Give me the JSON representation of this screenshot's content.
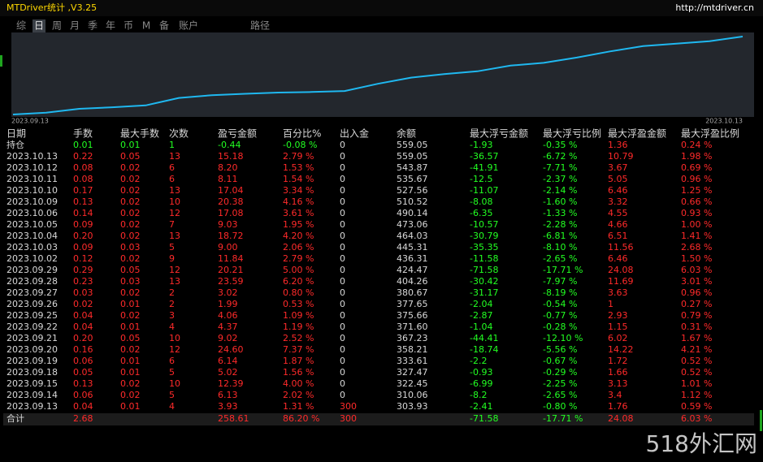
{
  "header": {
    "title": "MTDriver统计 ,V3.25",
    "url": "http://mtdriver.cn"
  },
  "tabs": [
    "综",
    "日",
    "周",
    "月",
    "季",
    "年",
    "币",
    "M",
    "备",
    "账户",
    "路径"
  ],
  "selected_tab": 1,
  "chart": {
    "start_label": "2023.09.13",
    "end_label": "2023.10.13"
  },
  "table": {
    "columns": [
      "日期",
      "手数",
      "最大手数",
      "次数",
      "盈亏金额",
      "百分比%",
      "出入金",
      "余额",
      "最大浮亏金额",
      "最大浮亏比例",
      "最大浮盈金额",
      "最大浮盈比例"
    ],
    "rows": [
      [
        "持仓",
        "0.01",
        "0.01",
        "1",
        "-0.44",
        "-0.08 %",
        "0",
        "559.05",
        "-1.93",
        "-0.35 %",
        "1.36",
        "0.24 %"
      ],
      [
        "2023.10.13",
        "0.22",
        "0.05",
        "13",
        "15.18",
        "2.79 %",
        "0",
        "559.05",
        "-36.57",
        "-6.72 %",
        "10.79",
        "1.98 %"
      ],
      [
        "2023.10.12",
        "0.08",
        "0.02",
        "6",
        "8.20",
        "1.53 %",
        "0",
        "543.87",
        "-41.91",
        "-7.71 %",
        "3.67",
        "0.69 %"
      ],
      [
        "2023.10.11",
        "0.08",
        "0.02",
        "6",
        "8.11",
        "1.54 %",
        "0",
        "535.67",
        "-12.5",
        "-2.37 %",
        "5.05",
        "0.96 %"
      ],
      [
        "2023.10.10",
        "0.17",
        "0.02",
        "13",
        "17.04",
        "3.34 %",
        "0",
        "527.56",
        "-11.07",
        "-2.14 %",
        "6.46",
        "1.25 %"
      ],
      [
        "2023.10.09",
        "0.13",
        "0.02",
        "10",
        "20.38",
        "4.16 %",
        "0",
        "510.52",
        "-8.08",
        "-1.60 %",
        "3.32",
        "0.66 %"
      ],
      [
        "2023.10.06",
        "0.14",
        "0.02",
        "12",
        "17.08",
        "3.61 %",
        "0",
        "490.14",
        "-6.35",
        "-1.33 %",
        "4.55",
        "0.93 %"
      ],
      [
        "2023.10.05",
        "0.09",
        "0.02",
        "7",
        "9.03",
        "1.95 %",
        "0",
        "473.06",
        "-10.57",
        "-2.28 %",
        "4.66",
        "1.00 %"
      ],
      [
        "2023.10.04",
        "0.20",
        "0.02",
        "13",
        "18.72",
        "4.20 %",
        "0",
        "464.03",
        "-30.79",
        "-6.81 %",
        "6.51",
        "1.41 %"
      ],
      [
        "2023.10.03",
        "0.09",
        "0.03",
        "5",
        "9.00",
        "2.06 %",
        "0",
        "445.31",
        "-35.35",
        "-8.10 %",
        "11.56",
        "2.68 %"
      ],
      [
        "2023.10.02",
        "0.12",
        "0.02",
        "9",
        "11.84",
        "2.79 %",
        "0",
        "436.31",
        "-11.58",
        "-2.65 %",
        "6.46",
        "1.50 %"
      ],
      [
        "2023.09.29",
        "0.29",
        "0.05",
        "12",
        "20.21",
        "5.00 %",
        "0",
        "424.47",
        "-71.58",
        "-17.71 %",
        "24.08",
        "6.03 %"
      ],
      [
        "2023.09.28",
        "0.23",
        "0.03",
        "13",
        "23.59",
        "6.20 %",
        "0",
        "404.26",
        "-30.42",
        "-7.97 %",
        "11.69",
        "3.01 %"
      ],
      [
        "2023.09.27",
        "0.03",
        "0.02",
        "2",
        "3.02",
        "0.80 %",
        "0",
        "380.67",
        "-31.17",
        "-8.19 %",
        "3.63",
        "0.96 %"
      ],
      [
        "2023.09.26",
        "0.02",
        "0.01",
        "2",
        "1.99",
        "0.53 %",
        "0",
        "377.65",
        "-2.04",
        "-0.54 %",
        "1",
        "0.27 %"
      ],
      [
        "2023.09.25",
        "0.04",
        "0.02",
        "3",
        "4.06",
        "1.09 %",
        "0",
        "375.66",
        "-2.87",
        "-0.77 %",
        "2.93",
        "0.79 %"
      ],
      [
        "2023.09.22",
        "0.04",
        "0.01",
        "4",
        "4.37",
        "1.19 %",
        "0",
        "371.60",
        "-1.04",
        "-0.28 %",
        "1.15",
        "0.31 %"
      ],
      [
        "2023.09.21",
        "0.20",
        "0.05",
        "10",
        "9.02",
        "2.52 %",
        "0",
        "367.23",
        "-44.41",
        "-12.10 %",
        "6.02",
        "1.67 %"
      ],
      [
        "2023.09.20",
        "0.16",
        "0.02",
        "12",
        "24.60",
        "7.37 %",
        "0",
        "358.21",
        "-18.74",
        "-5.56 %",
        "14.22",
        "4.21 %"
      ],
      [
        "2023.09.19",
        "0.06",
        "0.01",
        "6",
        "6.14",
        "1.87 %",
        "0",
        "333.61",
        "-2.2",
        "-0.67 %",
        "1.72",
        "0.52 %"
      ],
      [
        "2023.09.18",
        "0.05",
        "0.01",
        "5",
        "5.02",
        "1.56 %",
        "0",
        "327.47",
        "-0.93",
        "-0.29 %",
        "1.66",
        "0.52 %"
      ],
      [
        "2023.09.15",
        "0.13",
        "0.02",
        "10",
        "12.39",
        "4.00 %",
        "0",
        "322.45",
        "-6.99",
        "-2.25 %",
        "3.13",
        "1.01 %"
      ],
      [
        "2023.09.14",
        "0.06",
        "0.02",
        "5",
        "6.13",
        "2.02 %",
        "0",
        "310.06",
        "-8.2",
        "-2.65 %",
        "3.4",
        "1.12 %"
      ],
      [
        "2023.09.13",
        "0.04",
        "0.01",
        "4",
        "3.93",
        "1.31 %",
        "300",
        "303.93",
        "-2.41",
        "-0.80 %",
        "1.76",
        "0.59 %"
      ]
    ],
    "total": {
      "label": "合计",
      "lots": "2.68",
      "pl": "258.61",
      "pct": "86.20 %",
      "deposit": "300",
      "max_loss": "-71.58",
      "max_loss_pct": "-17.71 %",
      "max_profit": "24.08",
      "max_profit_pct": "6.03 %"
    }
  },
  "watermark": "518外汇网"
}
